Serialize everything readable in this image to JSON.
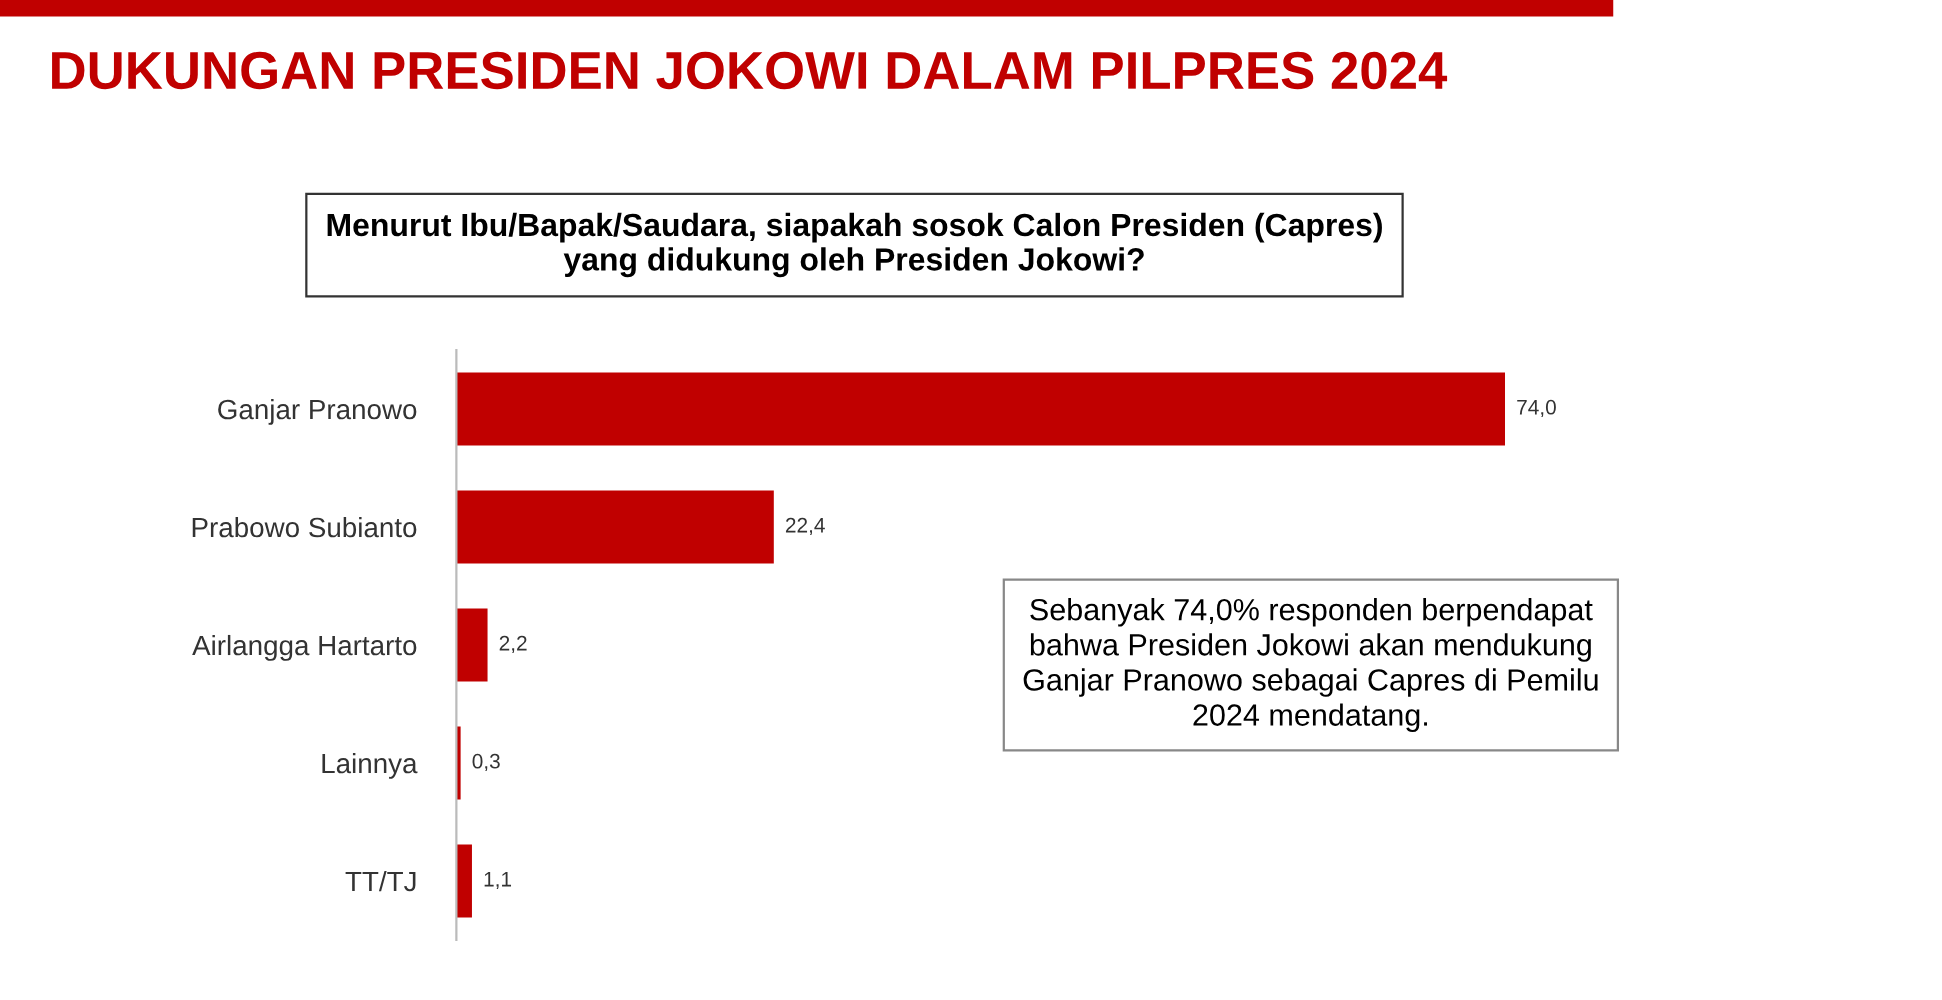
{
  "chart_data": {
    "type": "bar",
    "orientation": "horizontal",
    "title": "DUKUNGAN PRESIDEN JOKOWI DALAM PILPRES 2024",
    "subtitle": "Menurut Ibu/Bapak/Saudara, siapakah sosok Calon Presiden (Capres)\nyang didukung oleh Presiden Jokowi?",
    "categories": [
      "Ganjar Pranowo",
      "Prabowo Subianto",
      "Airlangga Hartarto",
      "Lainnya",
      "TT/TJ"
    ],
    "values": [
      74.0,
      22.4,
      2.2,
      0.3,
      1.1
    ],
    "value_labels": [
      "74,0",
      "22,4",
      "2,2",
      "0,3",
      "1,1"
    ],
    "color": "#c00000",
    "annotations": [
      "Sebanyak 74,0% responden berpendapat\nbahwa Presiden Jokowi akan mendukung\nGanjar Pranowo sebagai Capres di Pemilu\n2024 mendatang."
    ],
    "grid": false,
    "legend": false
  }
}
